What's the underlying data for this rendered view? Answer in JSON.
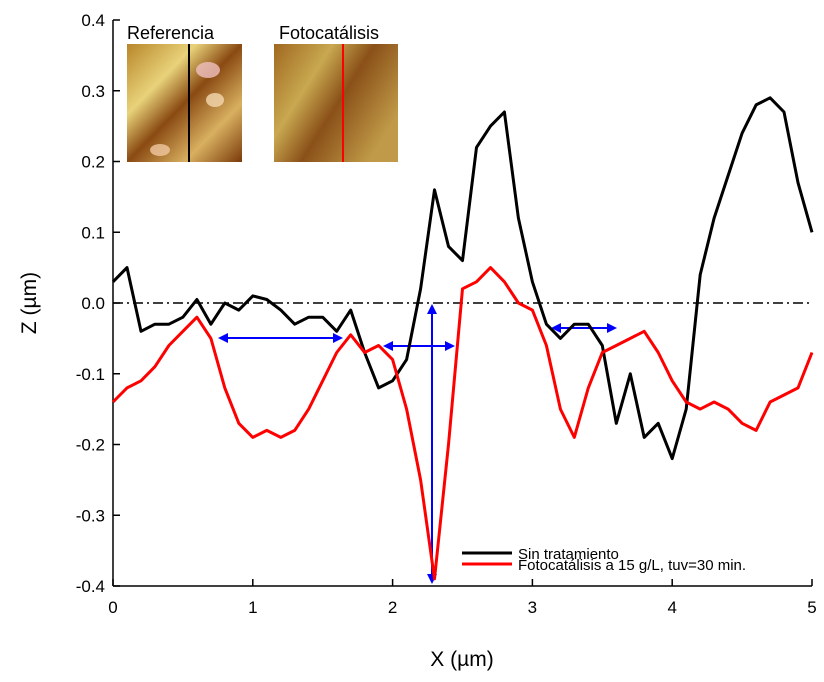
{
  "chart_data": {
    "type": "line",
    "x_label": "X (µm)",
    "y_label": "Z (µm)",
    "insets": [
      "Referencia",
      "Fotocatálisis"
    ],
    "x": [
      0,
      0.1,
      0.2,
      0.3,
      0.4,
      0.5,
      0.6,
      0.7,
      0.8,
      0.9,
      1,
      1.1,
      1.2,
      1.3,
      1.4,
      1.5,
      1.6,
      1.7,
      1.8,
      1.9,
      2,
      2.1,
      2.2,
      2.3,
      2.4,
      2.5,
      2.6,
      2.7,
      2.8,
      2.9,
      3,
      3.1,
      3.2,
      3.3,
      3.4,
      3.5,
      3.6,
      3.7,
      3.8,
      3.9,
      4,
      4.1,
      4.2,
      4.3,
      4.4,
      4.5,
      4.6,
      4.7,
      4.8,
      4.9,
      5
    ],
    "series": [
      {
        "name": "Sin tratamiento",
        "color": "#000000",
        "values": [
          0.03,
          0.05,
          -0.04,
          -0.03,
          -0.03,
          -0.02,
          0.005,
          -0.03,
          0,
          -0.01,
          0.01,
          0.005,
          -0.01,
          -0.03,
          -0.02,
          -0.02,
          -0.04,
          -0.01,
          -0.07,
          -0.12,
          -0.11,
          -0.08,
          0.02,
          0.16,
          0.08,
          0.06,
          0.22,
          0.25,
          0.27,
          0.12,
          0.03,
          -0.03,
          -0.05,
          -0.03,
          -0.03,
          -0.06,
          -0.17,
          -0.1,
          -0.19,
          -0.17,
          -0.22,
          -0.15,
          0.04,
          0.12,
          0.18,
          0.24,
          0.28,
          0.29,
          0.27,
          0.17,
          0.1
        ]
      },
      {
        "name": "Fotocatálisis a 15 g/L, tuv=30 min.",
        "color": "#ff0000",
        "values": [
          -0.14,
          -0.12,
          -0.11,
          -0.09,
          -0.06,
          -0.04,
          -0.02,
          -0.05,
          -0.12,
          -0.17,
          -0.19,
          -0.18,
          -0.19,
          -0.18,
          -0.15,
          -0.11,
          -0.07,
          -0.045,
          -0.07,
          -0.06,
          -0.08,
          -0.15,
          -0.25,
          -0.39,
          -0.2,
          0.02,
          0.03,
          0.05,
          0.03,
          0,
          -0.01,
          -0.06,
          -0.15,
          -0.19,
          -0.12,
          -0.07,
          -0.06,
          -0.05,
          -0.04,
          -0.07,
          -0.11,
          -0.14,
          -0.15,
          -0.14,
          -0.15,
          -0.17,
          -0.18,
          -0.14,
          -0.13,
          -0.12,
          -0.07
        ]
      }
    ],
    "reference_line": 0,
    "xlim": [
      0,
      5
    ],
    "xticks": [
      0,
      1,
      2,
      3,
      4,
      5
    ],
    "ylim": [
      -0.4,
      0.4
    ],
    "yticks": [
      -0.4,
      -0.3,
      -0.2,
      -0.1,
      {
        "value": 0,
        "label": "0.0"
      },
      0.1,
      0.2,
      0.3,
      0.4
    ]
  }
}
